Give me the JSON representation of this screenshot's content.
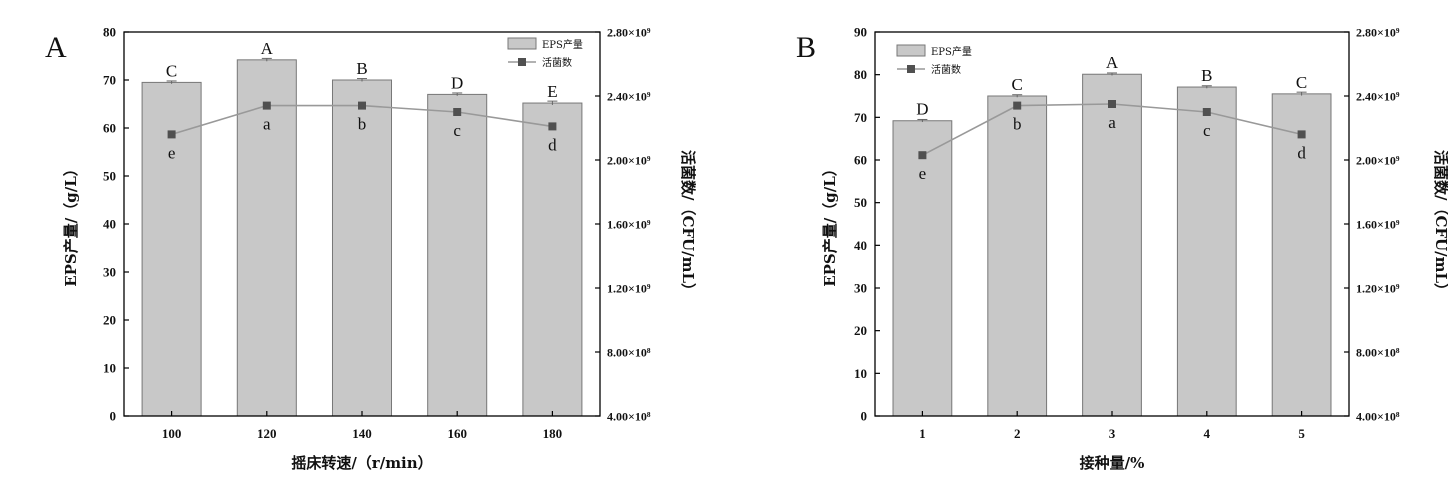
{
  "chart_data": [
    {
      "type": "bar",
      "panel_label": "A",
      "xlabel": "摇床转速/（r/min）",
      "ylabel": "EPS产量/（g/L）",
      "y2label": "活菌数/（CFU/mL）",
      "categories": [
        "100",
        "120",
        "140",
        "160",
        "180"
      ],
      "ylim": [
        0,
        80
      ],
      "yticks": [
        "0",
        "10",
        "20",
        "30",
        "40",
        "50",
        "60",
        "70",
        "80"
      ],
      "y2lim": [
        400000000,
        2800000000
      ],
      "y2ticks": [
        "4.00×10⁸",
        "8.00×10⁸",
        "1.20×10⁹",
        "1.60×10⁹",
        "2.00×10⁹",
        "2.40×10⁹",
        "2.80×10⁹"
      ],
      "series": [
        {
          "name": "EPS产量",
          "type": "bar",
          "values": [
            69.5,
            74.2,
            70.0,
            67.0,
            65.2
          ],
          "errors": [
            0.3,
            0.3,
            0.3,
            0.3,
            0.4
          ],
          "labels": [
            "C",
            "A",
            "B",
            "D",
            "E"
          ]
        },
        {
          "name": "活菌数",
          "type": "line",
          "values": [
            2160000000,
            2340000000,
            2340000000,
            2300000000,
            2210000000
          ],
          "labels": [
            "e",
            "a",
            "b",
            "c",
            "d"
          ]
        }
      ],
      "legend_position": "top-right"
    },
    {
      "type": "bar",
      "panel_label": "B",
      "xlabel": "接种量/%",
      "ylabel": "EPS产量/（g/L）",
      "y2label": "活菌数/（CFU/mL）",
      "categories": [
        "1",
        "2",
        "3",
        "4",
        "5"
      ],
      "ylim": [
        0,
        90
      ],
      "yticks": [
        "0",
        "10",
        "20",
        "30",
        "40",
        "50",
        "60",
        "70",
        "80",
        "90"
      ],
      "y2lim": [
        400000000,
        2800000000
      ],
      "y2ticks": [
        "4.00×10⁸",
        "8.00×10⁸",
        "1.20×10⁹",
        "1.60×10⁹",
        "2.00×10⁹",
        "2.40×10⁹",
        "2.80×10⁹"
      ],
      "series": [
        {
          "name": "EPS产量",
          "type": "bar",
          "values": [
            69.2,
            75.0,
            80.1,
            77.1,
            75.5
          ],
          "errors": [
            0.3,
            0.3,
            0.3,
            0.3,
            0.4
          ],
          "labels": [
            "D",
            "C",
            "A",
            "B",
            "C"
          ]
        },
        {
          "name": "活菌数",
          "type": "line",
          "values": [
            2030000000,
            2340000000,
            2350000000,
            2300000000,
            2160000000
          ],
          "labels": [
            "e",
            "b",
            "a",
            "c",
            "d"
          ]
        }
      ],
      "legend_position": "top-left"
    }
  ]
}
